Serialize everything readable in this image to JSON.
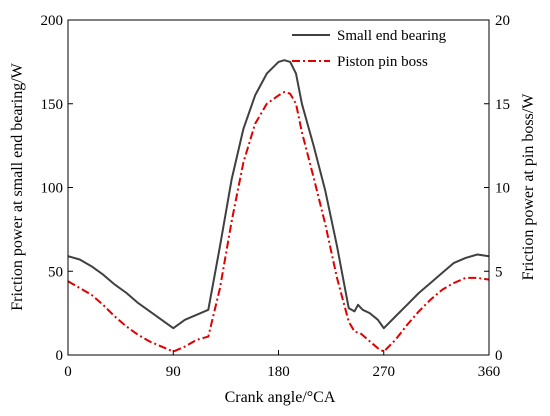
{
  "chart_data": {
    "type": "line",
    "xlabel": "Crank angle/°CA",
    "ylabel_left": "Friction power  at small end bearing/W",
    "ylabel_right": "Friction power at pin boss/W",
    "xlim": [
      0,
      360
    ],
    "ylim_left": [
      0,
      200
    ],
    "ylim_right": [
      0,
      20
    ],
    "x_ticks": [
      0,
      90,
      180,
      270,
      360
    ],
    "y_ticks_left": [
      0,
      50,
      100,
      150,
      200
    ],
    "y_ticks_right": [
      0,
      5,
      10,
      15,
      20
    ],
    "grid": false,
    "legend_position": "top-right",
    "series": [
      {
        "name": "Small end bearing",
        "axis": "left",
        "color": "#404040",
        "style": "solid",
        "x": [
          0,
          10,
          20,
          30,
          40,
          50,
          60,
          70,
          80,
          90,
          100,
          110,
          120,
          130,
          140,
          150,
          160,
          170,
          180,
          185,
          190,
          195,
          200,
          210,
          220,
          230,
          240,
          245,
          248,
          252,
          258,
          265,
          270,
          280,
          290,
          300,
          310,
          320,
          330,
          340,
          350,
          360
        ],
        "y": [
          59,
          57,
          53,
          48,
          42,
          37,
          31,
          26,
          21,
          16,
          21,
          24,
          27,
          65,
          105,
          135,
          155,
          168,
          175,
          176,
          175,
          168,
          150,
          125,
          98,
          65,
          28,
          26,
          30,
          27,
          25,
          21,
          16,
          23,
          30,
          37,
          43,
          49,
          55,
          58,
          60,
          59
        ]
      },
      {
        "name": "Piston pin boss",
        "axis": "right",
        "color": "#e00000",
        "style": "dash-dot",
        "x": [
          0,
          10,
          20,
          30,
          40,
          50,
          60,
          70,
          80,
          90,
          100,
          110,
          120,
          130,
          140,
          150,
          160,
          170,
          180,
          185,
          190,
          195,
          200,
          210,
          220,
          230,
          240,
          245,
          250,
          255,
          260,
          265,
          270,
          280,
          290,
          300,
          310,
          320,
          330,
          340,
          350,
          360
        ],
        "y": [
          4.4,
          4.0,
          3.6,
          3.0,
          2.3,
          1.7,
          1.2,
          0.8,
          0.5,
          0.2,
          0.5,
          0.9,
          1.1,
          4.0,
          8.0,
          11.5,
          13.8,
          15.0,
          15.5,
          15.7,
          15.6,
          15.0,
          13.3,
          10.6,
          7.8,
          4.6,
          2.0,
          1.4,
          1.3,
          1.0,
          0.7,
          0.4,
          0.2,
          0.9,
          1.8,
          2.6,
          3.3,
          3.9,
          4.3,
          4.6,
          4.6,
          4.5
        ]
      }
    ]
  }
}
